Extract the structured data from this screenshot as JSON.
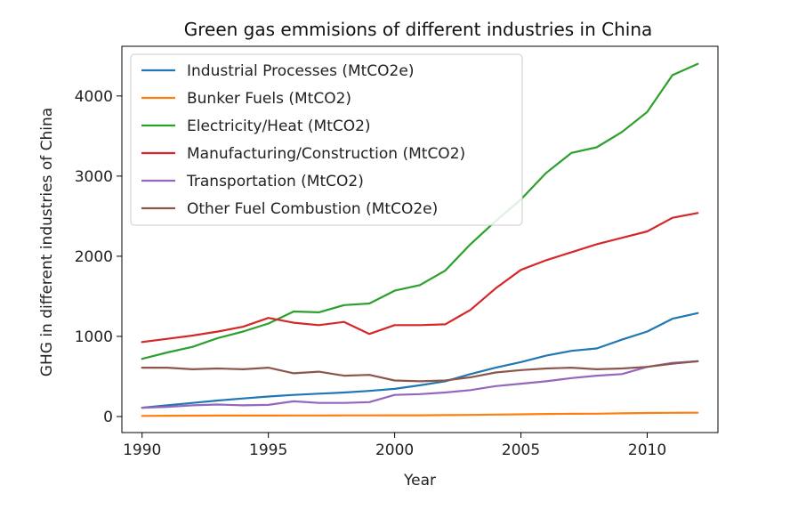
{
  "chart_data": {
    "type": "line",
    "title": "Green gas emmisions of different industries in China",
    "xlabel": "Year",
    "ylabel": "GHG in different industries of China",
    "xlim": [
      1989.2,
      2012.8
    ],
    "ylim": [
      -200,
      4620
    ],
    "xticks": [
      1990,
      1995,
      2000,
      2005,
      2010
    ],
    "yticks": [
      0,
      1000,
      2000,
      3000,
      4000
    ],
    "grid": false,
    "legend_position": "upper-left",
    "x": [
      1990,
      1991,
      1992,
      1993,
      1994,
      1995,
      1996,
      1997,
      1998,
      1999,
      2000,
      2001,
      2002,
      2003,
      2004,
      2005,
      2006,
      2007,
      2008,
      2009,
      2010,
      2011,
      2012
    ],
    "series": [
      {
        "name": "Industrial Processes (MtCO2e)",
        "color": "#1f77b4",
        "values": [
          110,
          140,
          170,
          200,
          225,
          250,
          270,
          285,
          300,
          320,
          345,
          390,
          440,
          530,
          610,
          680,
          760,
          820,
          850,
          960,
          1060,
          1220,
          1290
        ]
      },
      {
        "name": "Bunker Fuels (MtCO2)",
        "color": "#ff7f0e",
        "values": [
          8,
          10,
          11,
          12,
          12,
          12,
          13,
          13,
          14,
          14,
          15,
          16,
          18,
          20,
          24,
          28,
          32,
          34,
          36,
          40,
          44,
          46,
          48
        ]
      },
      {
        "name": "Electricity/Heat (MtCO2)",
        "color": "#2ca02c",
        "values": [
          720,
          800,
          870,
          980,
          1060,
          1160,
          1310,
          1300,
          1390,
          1410,
          1570,
          1640,
          1820,
          2150,
          2440,
          2710,
          3040,
          3290,
          3360,
          3550,
          3800,
          4260,
          4400
        ]
      },
      {
        "name": "Manufacturing/Construction (MtCO2)",
        "color": "#d62728",
        "values": [
          930,
          970,
          1010,
          1060,
          1120,
          1230,
          1170,
          1140,
          1180,
          1030,
          1140,
          1140,
          1150,
          1330,
          1600,
          1830,
          1950,
          2050,
          2150,
          2230,
          2310,
          2480,
          2540
        ]
      },
      {
        "name": "Transportation (MtCO2)",
        "color": "#9467bd",
        "values": [
          110,
          120,
          140,
          150,
          140,
          145,
          190,
          170,
          170,
          180,
          270,
          280,
          300,
          330,
          380,
          410,
          440,
          480,
          510,
          530,
          620,
          670,
          690
        ]
      },
      {
        "name": "Other Fuel Combustion (MtCO2e)",
        "color": "#8c564b",
        "values": [
          610,
          610,
          590,
          600,
          590,
          610,
          540,
          560,
          510,
          520,
          450,
          440,
          450,
          490,
          550,
          580,
          600,
          610,
          590,
          600,
          620,
          660,
          690
        ]
      }
    ]
  }
}
